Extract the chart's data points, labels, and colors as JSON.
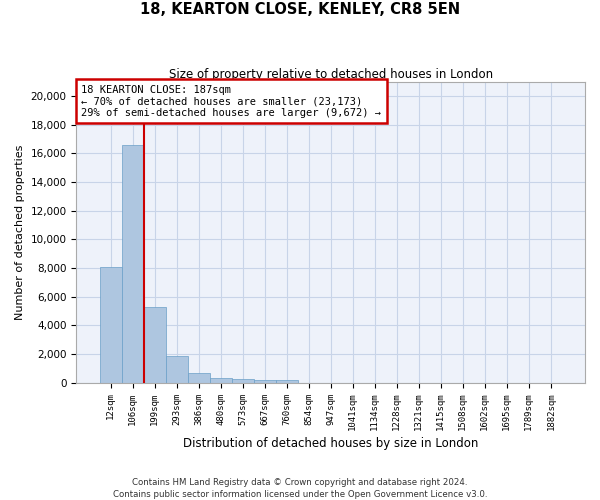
{
  "title": "18, KEARTON CLOSE, KENLEY, CR8 5EN",
  "subtitle": "Size of property relative to detached houses in London",
  "xlabel": "Distribution of detached houses by size in London",
  "ylabel": "Number of detached properties",
  "bar_color": "#aec6e0",
  "bar_edge_color": "#6a9fc8",
  "grid_color": "#c8d4e8",
  "bg_color": "#eef2fa",
  "annotation_box_color": "#cc0000",
  "annotation_line1": "18 KEARTON CLOSE: 187sqm",
  "annotation_line2": "← 70% of detached houses are smaller (23,173)",
  "annotation_line3": "29% of semi-detached houses are larger (9,672) →",
  "vline_color": "#cc0000",
  "categories": [
    "12sqm",
    "106sqm",
    "199sqm",
    "293sqm",
    "386sqm",
    "480sqm",
    "573sqm",
    "667sqm",
    "760sqm",
    "854sqm",
    "947sqm",
    "1041sqm",
    "1134sqm",
    "1228sqm",
    "1321sqm",
    "1415sqm",
    "1508sqm",
    "1602sqm",
    "1695sqm",
    "1789sqm",
    "1882sqm"
  ],
  "bar_values": [
    8100,
    16600,
    5300,
    1850,
    650,
    350,
    280,
    220,
    175,
    0,
    0,
    0,
    0,
    0,
    0,
    0,
    0,
    0,
    0,
    0,
    0
  ],
  "ylim": [
    0,
    21000
  ],
  "yticks": [
    0,
    2000,
    4000,
    6000,
    8000,
    10000,
    12000,
    14000,
    16000,
    18000,
    20000
  ],
  "footnote_line1": "Contains HM Land Registry data © Crown copyright and database right 2024.",
  "footnote_line2": "Contains public sector information licensed under the Open Government Licence v3.0."
}
